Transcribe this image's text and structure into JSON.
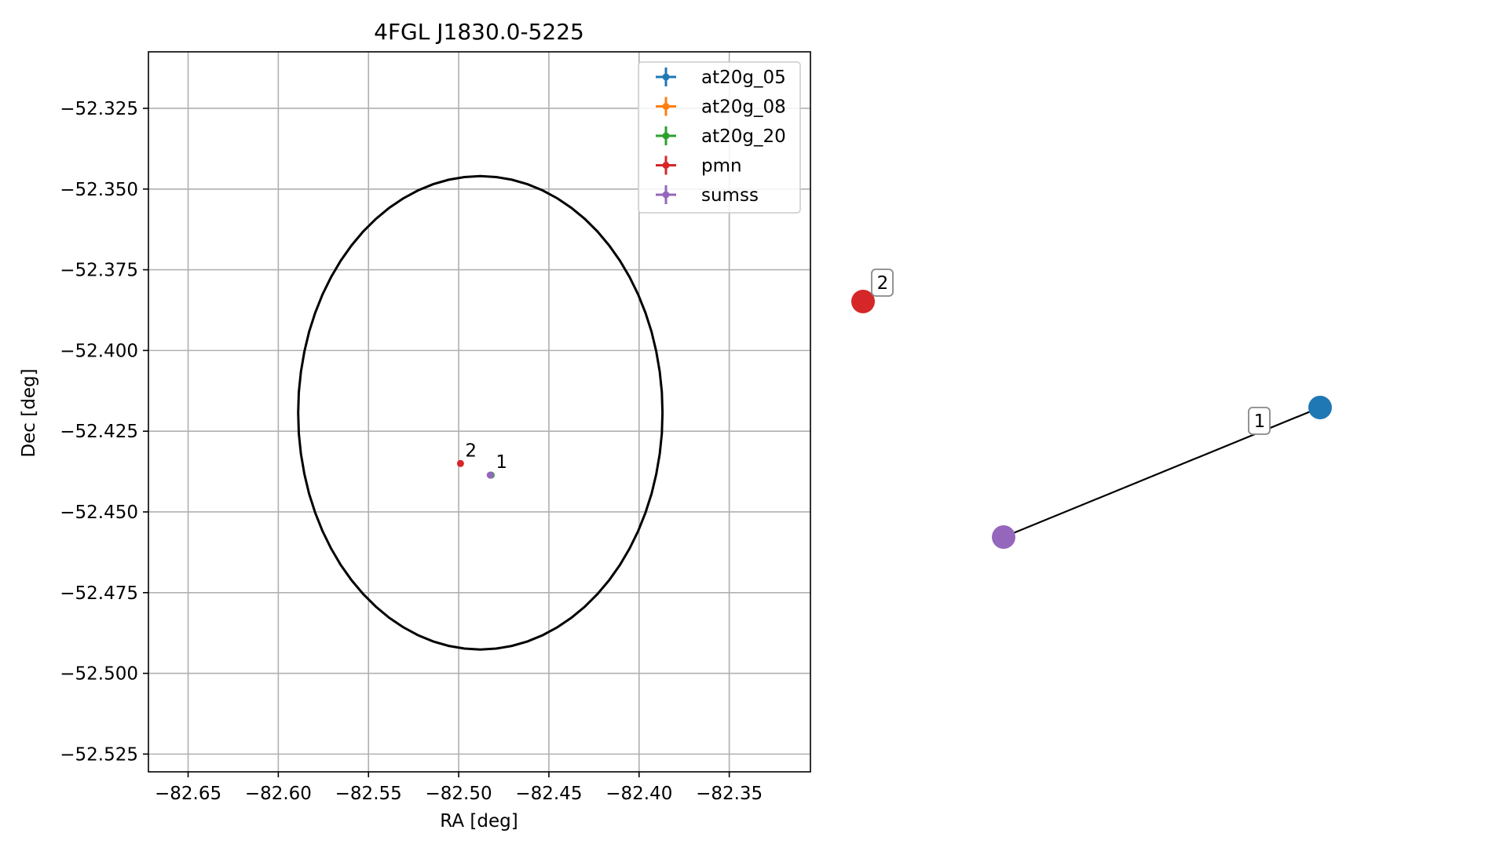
{
  "chart_data": [
    {
      "type": "scatter",
      "title": "4FGL J1830.0-5225",
      "xlabel": "RA [deg]",
      "ylabel": "Dec [deg]",
      "xlim": [
        -82.672,
        -82.305
      ],
      "ylim": [
        -52.5305,
        -52.3075
      ],
      "x_tick_values": [
        -82.65,
        -82.6,
        -82.55,
        -82.5,
        -82.45,
        -82.4,
        -82.35
      ],
      "x_tick_labels": [
        "−82.65",
        "−82.60",
        "−82.55",
        "−82.50",
        "−82.45",
        "−82.40",
        "−82.35"
      ],
      "y_tick_values": [
        -52.325,
        -52.35,
        -52.375,
        -52.4,
        -52.425,
        -52.45,
        -52.475,
        -52.5,
        -52.525
      ],
      "y_tick_labels": [
        "−52.325",
        "−52.350",
        "−52.375",
        "−52.400",
        "−52.425",
        "−52.450",
        "−52.475",
        "−52.500",
        "−52.525"
      ],
      "grid": true,
      "legend_position": "top-right",
      "ellipse": {
        "center_ra": -82.488,
        "center_dec": -52.4193,
        "semi_axis_ra": 0.101,
        "semi_axis_dec": 0.0733,
        "color": "#000000"
      },
      "series": [
        {
          "name": "at20g_05",
          "color": "#1f77b4",
          "points": [
            {
              "ra": -82.4823,
              "dec": -52.4386
            }
          ]
        },
        {
          "name": "at20g_08",
          "color": "#ff7f0e",
          "points": [
            {
              "ra": -82.4822,
              "dec": -52.4386
            }
          ]
        },
        {
          "name": "at20g_20",
          "color": "#2ca02c",
          "points": [
            {
              "ra": -82.482,
              "dec": -52.4386
            }
          ]
        },
        {
          "name": "pmn",
          "color": "#d62728",
          "points": [
            {
              "ra": -82.499,
              "dec": -52.435
            }
          ]
        },
        {
          "name": "sumss",
          "color": "#9467bd",
          "points": [
            {
              "ra": -82.4825,
              "dec": -52.4386
            }
          ]
        }
      ],
      "point_labels": [
        {
          "text": "2",
          "ra": -82.499,
          "dec": -52.435
        },
        {
          "text": "1",
          "ra": -82.482,
          "dec": -52.4386
        }
      ]
    },
    {
      "type": "network",
      "nodes": [
        {
          "id": "pmn",
          "color": "#d62728",
          "label": "2"
        },
        {
          "id": "at20g_05",
          "color": "#1f77b4"
        },
        {
          "id": "sumss",
          "color": "#9467bd"
        }
      ],
      "edges": [
        {
          "from": "sumss",
          "to": "at20g_05",
          "label": "1"
        }
      ]
    }
  ]
}
